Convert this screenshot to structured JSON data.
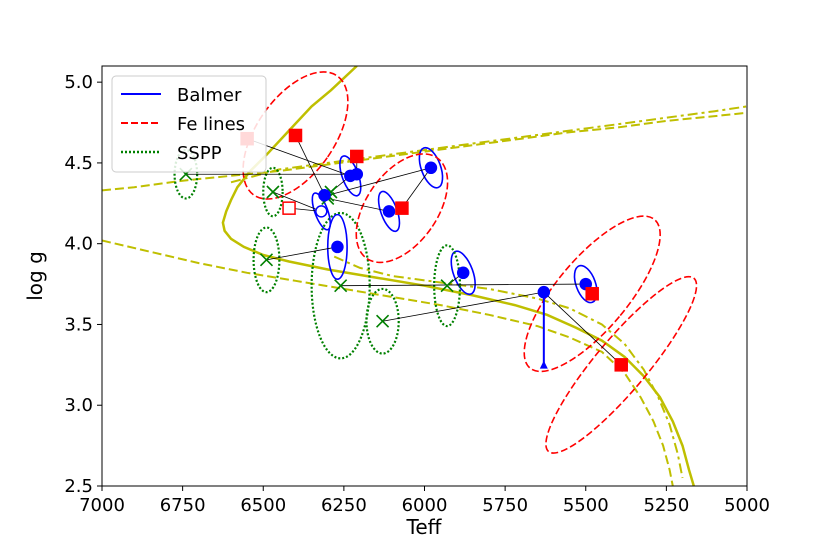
{
  "chart_data": {
    "type": "scatter",
    "xlabel": "Teff",
    "ylabel": "log g",
    "xlim": [
      7000,
      5000
    ],
    "ylim": [
      5.1,
      2.5
    ],
    "x_ticks": [
      7000,
      6750,
      6500,
      6250,
      6000,
      5750,
      5500,
      5250,
      5000
    ],
    "x_tick_labels": [
      "7000",
      "6750",
      "6500",
      "6250",
      "6000",
      "5750",
      "5500",
      "5250",
      "5000"
    ],
    "y_ticks": [
      2.5,
      3.0,
      3.5,
      4.0,
      4.5,
      5.0
    ],
    "y_tick_labels": [
      "2.5",
      "3.0",
      "3.5",
      "4.0",
      "4.5",
      "5.0"
    ],
    "grid": false,
    "legend": {
      "placement": "top-left",
      "entries": [
        {
          "label": "Balmer",
          "style": "solid",
          "color": "#0000ff"
        },
        {
          "label": "Fe lines",
          "style": "dashed",
          "color": "#ff0000"
        },
        {
          "label": "SSPP",
          "style": "dotted",
          "color": "#008000"
        }
      ]
    },
    "colors": {
      "balmer": "#0000ff",
      "fe": "#ff0000",
      "sspp": "#008000",
      "isochrone": "#bfbf00",
      "link": "#000000"
    },
    "isochrones": [
      {
        "style": "solid",
        "points": [
          [
            6210,
            5.1
          ],
          [
            6290,
            4.95
          ],
          [
            6350,
            4.85
          ],
          [
            6420,
            4.7
          ],
          [
            6490,
            4.55
          ],
          [
            6540,
            4.45
          ],
          [
            6580,
            4.35
          ],
          [
            6600,
            4.27
          ],
          [
            6615,
            4.2
          ],
          [
            6625,
            4.13
          ],
          [
            6620,
            4.08
          ],
          [
            6600,
            4.03
          ],
          [
            6560,
            3.98
          ],
          [
            6500,
            3.93
          ],
          [
            6420,
            3.89
          ],
          [
            6300,
            3.84
          ],
          [
            6150,
            3.79
          ],
          [
            6000,
            3.74
          ],
          [
            5850,
            3.68
          ],
          [
            5720,
            3.62
          ],
          [
            5620,
            3.56
          ],
          [
            5530,
            3.48
          ],
          [
            5450,
            3.4
          ],
          [
            5380,
            3.3
          ],
          [
            5320,
            3.18
          ],
          [
            5270,
            3.05
          ],
          [
            5230,
            2.9
          ],
          [
            5200,
            2.75
          ],
          [
            5180,
            2.6
          ],
          [
            5165,
            2.5
          ]
        ]
      },
      {
        "style": "dashed",
        "points": [
          [
            7000,
            4.02
          ],
          [
            6850,
            3.95
          ],
          [
            6700,
            3.88
          ],
          [
            6550,
            3.82
          ],
          [
            6400,
            3.77
          ],
          [
            6250,
            3.72
          ],
          [
            6100,
            3.67
          ],
          [
            5950,
            3.62
          ],
          [
            5800,
            3.56
          ],
          [
            5650,
            3.49
          ],
          [
            5550,
            3.42
          ],
          [
            5450,
            3.33
          ],
          [
            5380,
            3.2
          ],
          [
            5330,
            3.05
          ],
          [
            5290,
            2.9
          ],
          [
            5260,
            2.75
          ],
          [
            5240,
            2.6
          ],
          [
            5230,
            2.5
          ]
        ]
      },
      {
        "style": "dashed",
        "points": [
          [
            7000,
            4.33
          ],
          [
            6900,
            4.35
          ],
          [
            6750,
            4.39
          ],
          [
            6600,
            4.42
          ],
          [
            6450,
            4.45
          ],
          [
            6300,
            4.49
          ],
          [
            6150,
            4.53
          ],
          [
            6000,
            4.57
          ],
          [
            5850,
            4.61
          ],
          [
            5700,
            4.65
          ],
          [
            5550,
            4.69
          ],
          [
            5400,
            4.72
          ],
          [
            5250,
            4.76
          ],
          [
            5100,
            4.79
          ],
          [
            5000,
            4.81
          ]
        ]
      },
      {
        "style": "dashdot",
        "points": [
          [
            6600,
            4.38
          ],
          [
            6450,
            4.46
          ],
          [
            6300,
            4.5
          ],
          [
            6150,
            4.54
          ],
          [
            6000,
            4.58
          ],
          [
            5850,
            4.62
          ],
          [
            5700,
            4.66
          ],
          [
            5550,
            4.7
          ],
          [
            5400,
            4.74
          ],
          [
            5250,
            4.78
          ],
          [
            5100,
            4.82
          ],
          [
            5000,
            4.85
          ]
        ]
      },
      {
        "style": "dashdot",
        "points": [
          [
            6280,
            3.92
          ],
          [
            6200,
            3.85
          ],
          [
            6100,
            3.8
          ],
          [
            5950,
            3.76
          ],
          [
            5800,
            3.72
          ],
          [
            5650,
            3.66
          ],
          [
            5550,
            3.6
          ],
          [
            5450,
            3.5
          ],
          [
            5380,
            3.38
          ],
          [
            5320,
            3.22
          ],
          [
            5275,
            3.05
          ],
          [
            5240,
            2.88
          ],
          [
            5215,
            2.7
          ],
          [
            5200,
            2.55
          ]
        ]
      }
    ],
    "stars": [
      {
        "balmer": {
          "teff": 5630,
          "logg": 3.7,
          "rx": 0,
          "ry": 0,
          "angle": 0,
          "lower_limit": true,
          "arrow_to_logg": 3.27
        },
        "fe": {
          "teff": 5390,
          "logg": 3.25,
          "rx": 80,
          "ry": 0.7,
          "angle": 40,
          "filled": true
        },
        "sspp": {
          "teff": 6130,
          "logg": 3.52,
          "rx": 50,
          "ry": 0.2,
          "angle": 0
        }
      },
      {
        "balmer": {
          "teff": 5500,
          "logg": 3.75,
          "rx": 30,
          "ry": 0.12,
          "angle": -20,
          "lower_limit": false
        },
        "fe": {
          "teff": 5480,
          "logg": 3.69,
          "rx": 110,
          "ry": 0.6,
          "angle": 40,
          "filled": true
        },
        "sspp": {
          "teff": 6260,
          "logg": 3.74,
          "rx": 90,
          "ry": 0.45,
          "angle": 0
        }
      },
      {
        "balmer": {
          "teff": 5880,
          "logg": 3.82,
          "rx": 30,
          "ry": 0.14,
          "angle": -20,
          "lower_limit": false
        },
        "fe": null,
        "sspp": {
          "teff": 5930,
          "logg": 3.74,
          "rx": 40,
          "ry": 0.25,
          "angle": 0
        }
      },
      {
        "balmer": {
          "teff": 6270,
          "logg": 3.98,
          "rx": 30,
          "ry": 0.2,
          "angle": 0,
          "lower_limit": false
        },
        "fe": null,
        "sspp": {
          "teff": 6490,
          "logg": 3.9,
          "rx": 40,
          "ry": 0.2,
          "angle": 0
        }
      },
      {
        "balmer": {
          "teff": 6320,
          "logg": 4.2,
          "rx": 20,
          "ry": 0.12,
          "angle": -20,
          "lower_limit": false,
          "filled": false
        },
        "fe": {
          "teff": 6420,
          "logg": 4.22,
          "rx": 0,
          "ry": 0,
          "angle": 0,
          "filled": false
        },
        "sspp": {
          "teff": 6470,
          "logg": 4.32,
          "rx": 30,
          "ry": 0.15,
          "angle": 0
        }
      },
      {
        "balmer": {
          "teff": 6110,
          "logg": 4.2,
          "rx": 25,
          "ry": 0.13,
          "angle": -20,
          "lower_limit": false
        },
        "fe": null,
        "sspp": {
          "teff": 6300,
          "logg": 4.28,
          "rx": 0,
          "ry": 0,
          "angle": 0
        }
      },
      {
        "balmer": {
          "teff": 6230,
          "logg": 4.42,
          "rx": 25,
          "ry": 0.13,
          "angle": -20,
          "lower_limit": false
        },
        "fe": {
          "teff": 6550,
          "logg": 4.65,
          "rx": 0,
          "ry": 0,
          "angle": 0,
          "filled": true
        },
        "sspp": {
          "teff": 6290,
          "logg": 4.32,
          "rx": 0,
          "ry": 0,
          "angle": 0
        }
      },
      {
        "balmer": {
          "teff": 5980,
          "logg": 4.47,
          "rx": 30,
          "ry": 0.13,
          "angle": -20,
          "lower_limit": false
        },
        "fe": {
          "teff": 6070,
          "logg": 4.22,
          "rx": 110,
          "ry": 0.38,
          "angle": 35
        },
        "sspp": {
          "teff": 6300,
          "logg": 4.3,
          "rx": 0,
          "ry": 0,
          "angle": 0
        }
      },
      {
        "balmer": {
          "teff": 6210,
          "logg": 4.43,
          "rx": 0,
          "ry": 0,
          "angle": 0,
          "lower_limit": false
        },
        "fe": {
          "teff": 6210,
          "logg": 4.54,
          "rx": 0,
          "ry": 0,
          "angle": 0,
          "filled": true
        },
        "sspp": {
          "teff": 6740,
          "logg": 4.43,
          "rx": 35,
          "ry": 0.15,
          "angle": 0
        }
      },
      {
        "balmer": {
          "teff": 6310,
          "logg": 4.3,
          "rx": 0,
          "ry": 0,
          "angle": 0,
          "lower_limit": false
        },
        "fe": {
          "teff": 6400,
          "logg": 4.67,
          "rx": 120,
          "ry": 0.45,
          "angle": 35
        },
        "sspp": null
      }
    ]
  }
}
